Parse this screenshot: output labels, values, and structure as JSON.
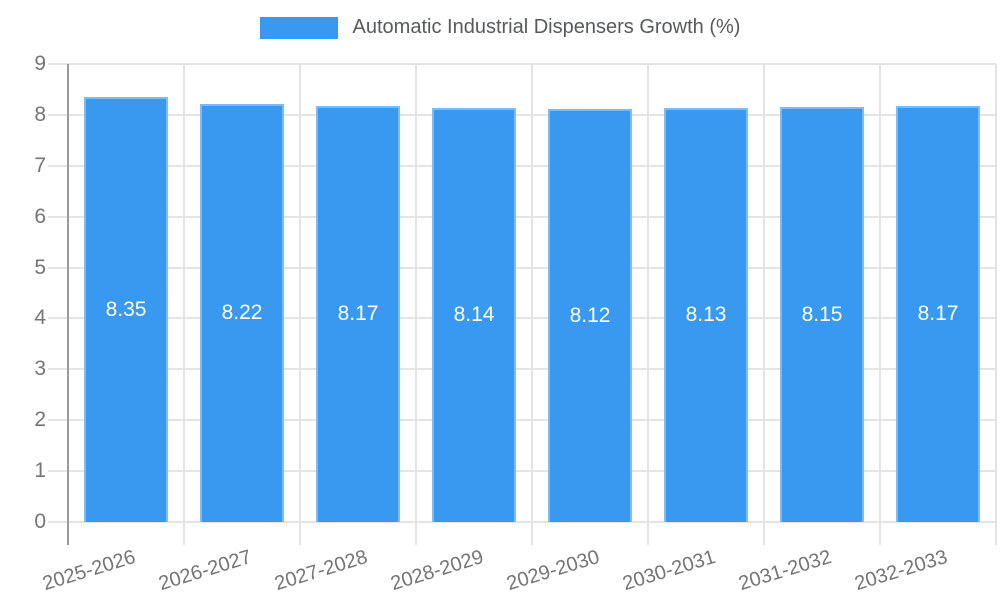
{
  "chart": {
    "colors": {
      "bar": "#3999F0",
      "grid": "#e4e4e4",
      "axis": "#9a9a9a",
      "tick_label": "#757575",
      "title_text": "#58595b",
      "value_label": "#ffffff",
      "background": "#ffffff"
    }
  },
  "chart_data": {
    "type": "bar",
    "title": "Automatic Industrial Dispensers Growth (%)",
    "legend_position": "top",
    "grid": true,
    "categories": [
      "2025-2026",
      "2026-2027",
      "2027-2028",
      "2028-2029",
      "2029-2030",
      "2030-2031",
      "2031-2032",
      "2032-2033"
    ],
    "values": [
      8.35,
      8.22,
      8.17,
      8.14,
      8.12,
      8.13,
      8.15,
      8.17
    ],
    "value_labels": [
      "8.35",
      "8.22",
      "8.17",
      "8.14",
      "8.12",
      "8.13",
      "8.15",
      "8.17"
    ],
    "xlabel": "",
    "ylabel": "",
    "ylim": [
      0,
      9
    ],
    "yticks": [
      0,
      1,
      2,
      3,
      4,
      5,
      6,
      7,
      8,
      9
    ]
  }
}
